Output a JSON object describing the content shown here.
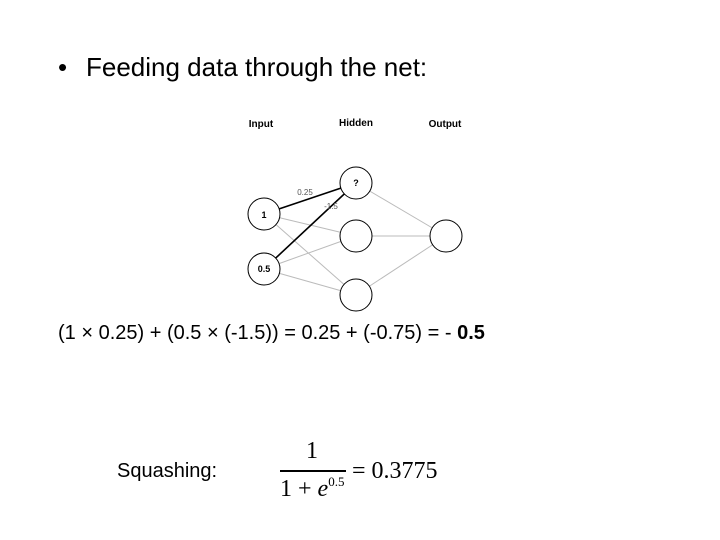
{
  "bullet": {
    "symbol": "•",
    "text": "Feeding data through the net:"
  },
  "network": {
    "layers": {
      "input": "Input",
      "hidden": "Hidden",
      "output": "Output"
    },
    "nodes": {
      "hidden_top": "?",
      "input_1": "1",
      "input_2": "0.5"
    },
    "weights": {
      "w1": "0.25",
      "w2": "-1.5"
    }
  },
  "equation": {
    "text": "(1 × 0.25) + (0.5 × (-1.5)) = 0.25 + (-0.75)   =  - ",
    "result": "0.5"
  },
  "squashing": {
    "label": "Squashing:",
    "numerator": "1",
    "denominator_base": "1 + e",
    "exponent": "0.5",
    "result": "= 0.3775"
  }
}
